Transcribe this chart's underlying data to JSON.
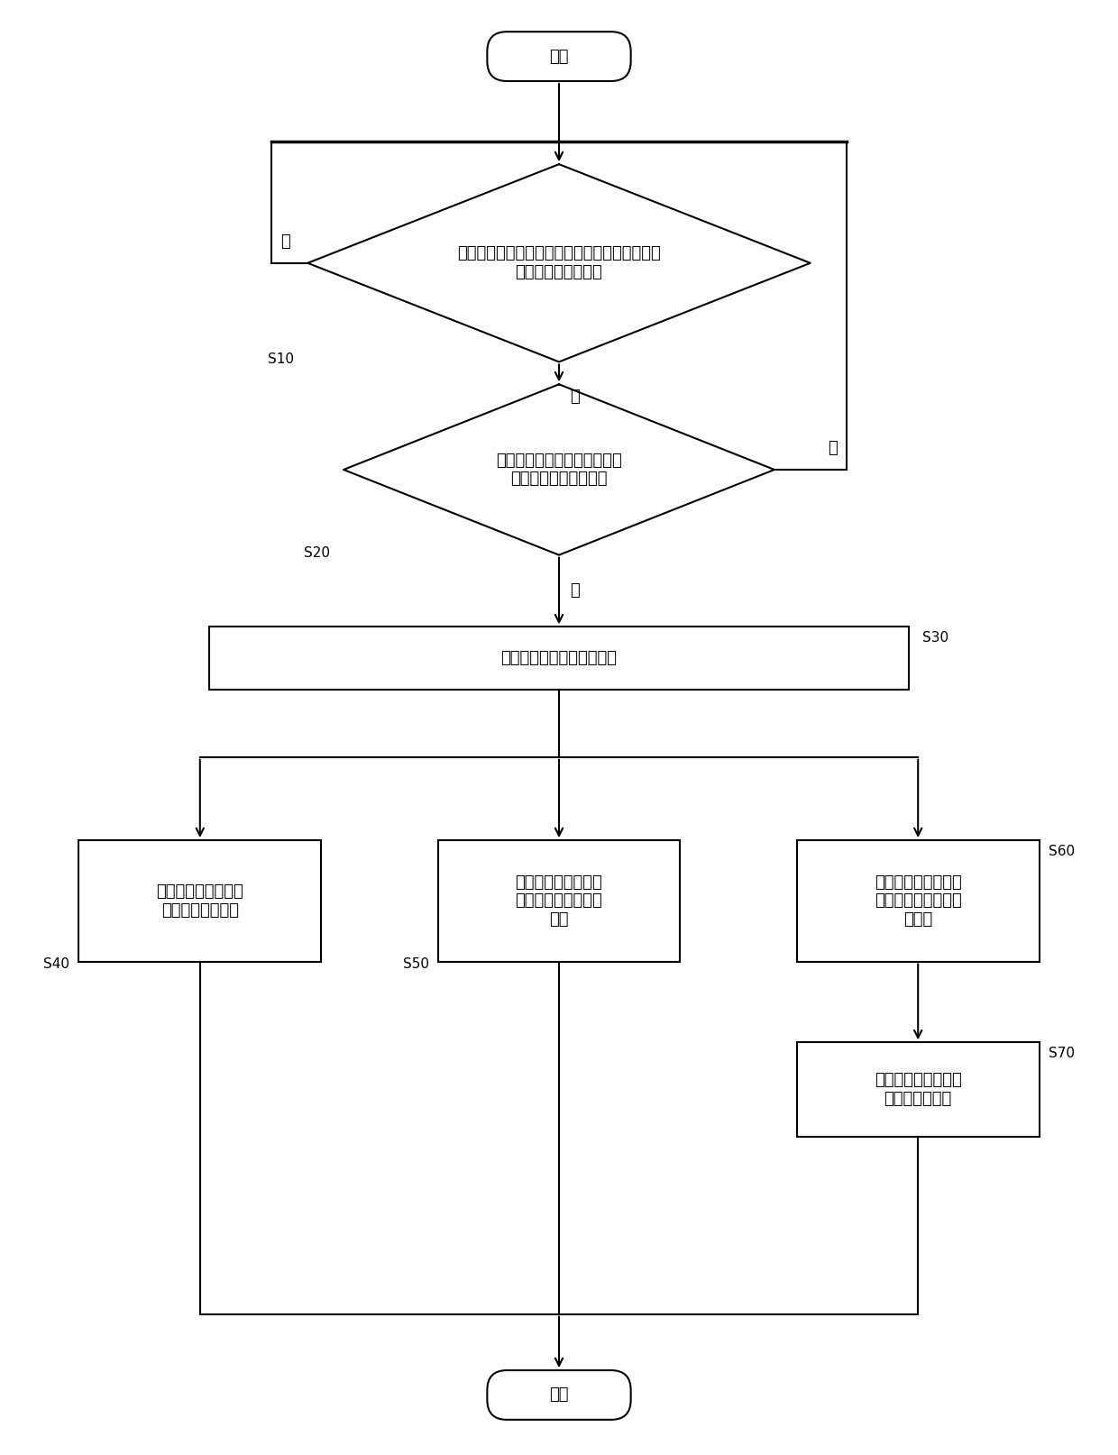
{
  "bg_color": "#ffffff",
  "line_color": "#000000",
  "text_color": "#000000",
  "font_size": 13,
  "label_font_size": 11,
  "start_text": "开始",
  "end_text": "结束",
  "d1_text": "检测触屏终端的屏幕当前显示的应用程序是否为\n预设的锁屏应用程序",
  "d2_text": "则按照预设规则检测触屏终端\n是否需要进入锁屏状态",
  "mr_text": "控制触屏终端进入锁屏状态",
  "s40_text": "获取预设的解锁手势\n解除屏幕锁屏状态",
  "s50_text": "获取预设的截屏手势\n截取屏幕显示的界面\n图像",
  "s60_text": "拦截触屏终端内安装\n的应用程序弹出的推\n送信息",
  "s70_text": "将推送信息储存到预\n设的拦截记录表",
  "yes_text": "是",
  "no_text": "否",
  "labels": [
    "S10",
    "S20",
    "S30",
    "S40",
    "S50",
    "S60",
    "S70"
  ]
}
